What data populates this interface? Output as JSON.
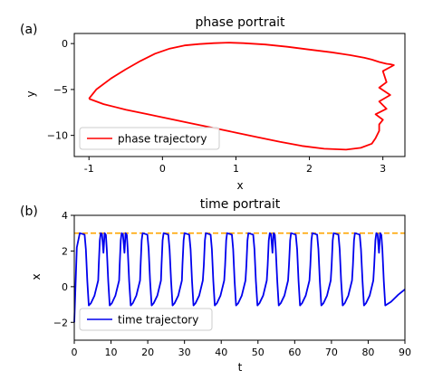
{
  "chart_data": [
    {
      "panel_label": "(a)",
      "type": "line",
      "title": "phase portrait",
      "xlabel": "x",
      "ylabel": "y",
      "xlim": [
        -1.2,
        3.3
      ],
      "ylim": [
        -12.3,
        1.1
      ],
      "xticks": [
        -1,
        0,
        1,
        2,
        3
      ],
      "yticks": [
        0,
        -5,
        -10
      ],
      "grid": false,
      "legend": {
        "placement": "lower-left",
        "entries": [
          "phase trajectory"
        ]
      },
      "series": [
        {
          "name": "phase trajectory",
          "color": "#ff0000",
          "x": [
            -1.0,
            -0.9,
            -0.7,
            -0.5,
            -0.3,
            -0.1,
            0.1,
            0.3,
            0.5,
            0.7,
            0.9,
            1.1,
            1.4,
            1.7,
            2.0,
            2.3,
            2.55,
            2.75,
            2.85,
            2.95,
            3.05,
            3.1,
            3.15,
            3.0,
            3.05,
            2.95,
            3.1,
            2.95,
            3.05,
            2.9,
            3.0,
            2.95,
            2.95,
            2.9,
            2.85,
            2.7,
            2.5,
            2.2,
            1.9,
            1.6,
            1.3,
            1.0,
            0.7,
            0.4,
            0.1,
            -0.2,
            -0.5,
            -0.8,
            -1.0
          ],
          "y": [
            -6.0,
            -5.0,
            -3.8,
            -2.8,
            -1.9,
            -1.1,
            -0.55,
            -0.2,
            -0.05,
            0.05,
            0.1,
            0.05,
            -0.1,
            -0.35,
            -0.65,
            -0.95,
            -1.25,
            -1.55,
            -1.75,
            -2.0,
            -2.2,
            -2.25,
            -2.35,
            -3.0,
            -4.2,
            -4.8,
            -5.6,
            -6.3,
            -7.1,
            -7.7,
            -8.3,
            -8.8,
            -9.5,
            -10.3,
            -10.9,
            -11.35,
            -11.55,
            -11.45,
            -11.15,
            -10.7,
            -10.2,
            -9.7,
            -9.2,
            -8.7,
            -8.2,
            -7.7,
            -7.2,
            -6.6,
            -6.0
          ]
        }
      ]
    },
    {
      "panel_label": "(b)",
      "type": "line",
      "title": "time portrait",
      "xlabel": "t",
      "ylabel": "x",
      "xlim": [
        0,
        90
      ],
      "ylim": [
        -3,
        4
      ],
      "xticks": [
        0,
        10,
        20,
        30,
        40,
        50,
        60,
        70,
        80,
        90
      ],
      "yticks": [
        4,
        2,
        0,
        -2
      ],
      "grid": false,
      "legend": {
        "placement": "lower-left",
        "entries": [
          "time trajectory"
        ]
      },
      "reference_line": {
        "y": 3.0,
        "color": "#ffa500",
        "style": "dashed"
      },
      "series": [
        {
          "name": "time trajectory",
          "color": "#0000ee",
          "spike_times": [
            1.5,
            7.2,
            12.9,
            18.6,
            24.3,
            30.0,
            35.8,
            41.6,
            47.4,
            53.2,
            59.0,
            64.8,
            70.6,
            76.4,
            82.2
          ],
          "spike_peak": 3.0,
          "trough": -1.05,
          "initial_value": -2.0,
          "final_value": -0.15,
          "double_peak_spikes": [
            7.2,
            12.9,
            53.2,
            82.2
          ]
        }
      ]
    }
  ]
}
